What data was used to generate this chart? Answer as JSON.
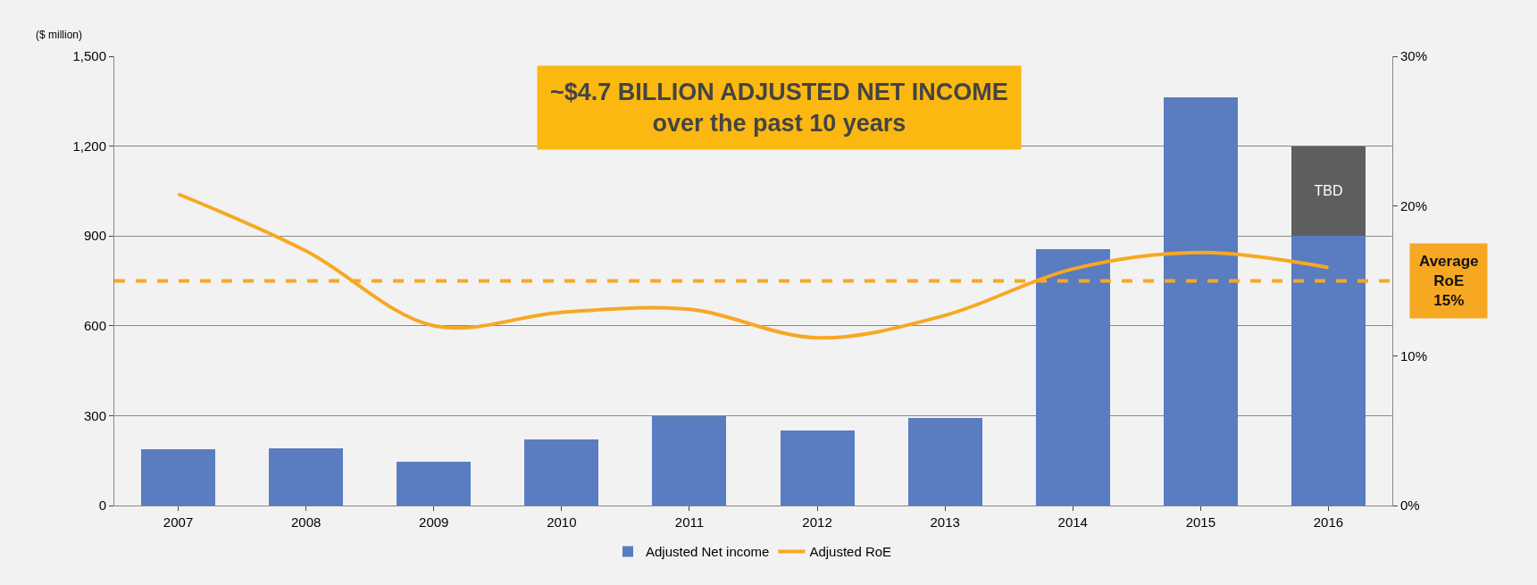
{
  "chart_data": {
    "type": "bar",
    "title": "~$4.7 BILLION ADJUSTED NET INCOME\nover the past 10 years",
    "ylabel": "($ million)",
    "categories": [
      "2007",
      "2008",
      "2009",
      "2010",
      "2011",
      "2012",
      "2013",
      "2014",
      "2015",
      "2016"
    ],
    "stacked": true,
    "series": [
      {
        "name": "Adjusted Net income",
        "color": "#5a7cc0",
        "values": [
          188,
          190,
          145,
          222,
          297,
          252,
          291,
          856,
          1362,
          900
        ]
      },
      {
        "color": "#5e5e5e",
        "values": [
          null,
          null,
          null,
          null,
          null,
          null,
          null,
          null,
          null,
          300
        ],
        "value_labels": [
          null,
          null,
          null,
          null,
          null,
          null,
          null,
          null,
          null,
          "TBD"
        ]
      },
      {
        "name": "Adjusted RoE",
        "type": "line",
        "axis": "y2",
        "color": "#f7a823",
        "values": [
          20.8,
          17.0,
          12.0,
          12.9,
          13.1,
          11.2,
          12.7,
          15.8,
          16.9,
          15.9
        ]
      }
    ],
    "ylim": [
      0,
      1500
    ],
    "yticks": [
      0,
      {
        "value": 300,
        "label": "300"
      },
      {
        "value": 600,
        "label": "600"
      },
      {
        "value": 900,
        "label": "900"
      },
      {
        "value": 1200,
        "label": "1,200"
      },
      {
        "value": 1500,
        "label": "1,500"
      }
    ],
    "y2lim": [
      0,
      30
    ],
    "y2ticks": [
      {
        "value": 0,
        "label": "0%"
      },
      {
        "value": 10,
        "label": "10%"
      },
      {
        "value": 20,
        "label": "20%"
      },
      {
        "value": 30,
        "label": "30%"
      }
    ],
    "ref_lines": [
      {
        "axis": "y2",
        "value": 15,
        "label": "Average RoE 15%",
        "color": "#f7a823",
        "line_style": "dashed"
      }
    ],
    "grid": "y",
    "legend": "bottom",
    "marker": "none"
  }
}
